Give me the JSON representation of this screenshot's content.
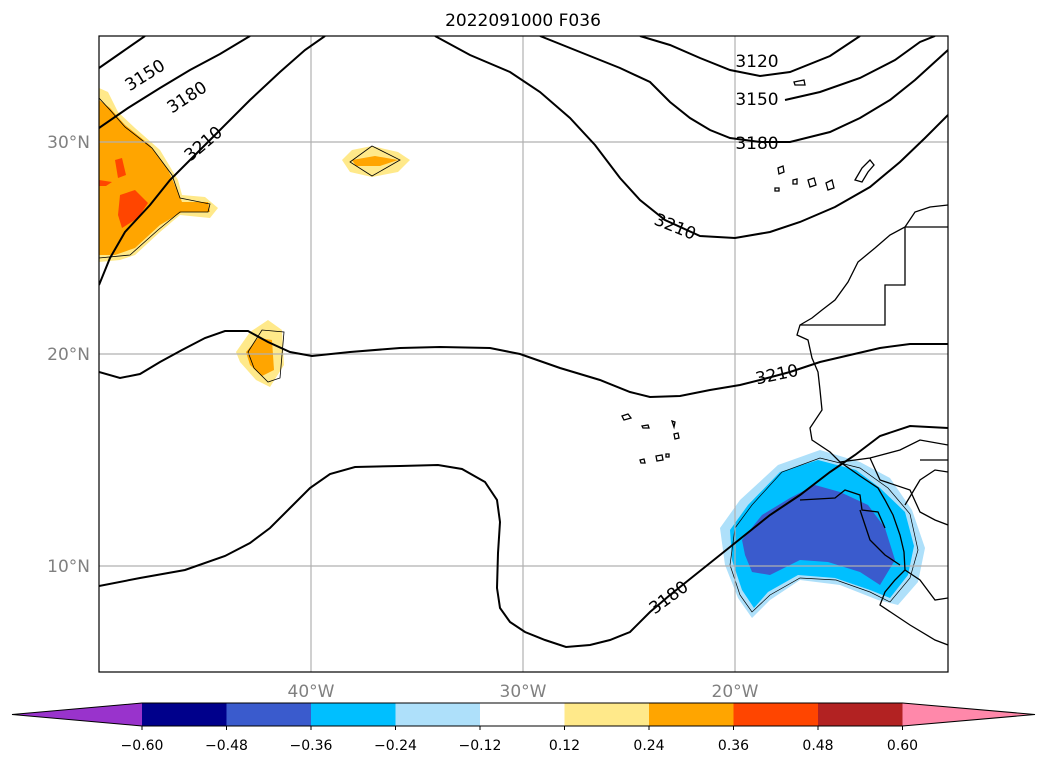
{
  "title": "2022091000 F036",
  "lat_labels": [
    "30°N",
    "20°N",
    "10°N"
  ],
  "lon_labels": [
    "40°W",
    "30°W",
    "20°W"
  ],
  "contour_labels": [
    "3150",
    "3180",
    "3210",
    "3120",
    "3150",
    "3180",
    "3210",
    "3210",
    "3180"
  ],
  "colorbar": {
    "tick_labels": [
      "−0.60",
      "−0.48",
      "−0.36",
      "−0.24",
      "−0.12",
      "0.12",
      "0.24",
      "0.36",
      "0.48",
      "0.60"
    ],
    "colors": [
      "#9933cc",
      "#00008b",
      "#3a5bcd",
      "#00bfff",
      "#aee0fa",
      "#ffffff",
      "#ffe98a",
      "#ffa500",
      "#ff4500",
      "#b22222",
      "#ff88aa"
    ]
  },
  "map_extent": {
    "lon_min": -50,
    "lon_max": -10,
    "lat_min": 5,
    "lat_max": 35
  },
  "grid": true
}
